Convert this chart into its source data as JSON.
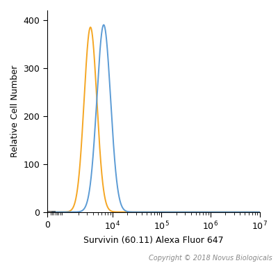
{
  "title": "",
  "xlabel": "Survivin (60.11) Alexa Fluor 647",
  "ylabel": "Relative Cell Number",
  "ylim": [
    0,
    420
  ],
  "yticks": [
    0,
    100,
    200,
    300,
    400
  ],
  "orange_peak_log": 3.55,
  "orange_peak_height": 385,
  "orange_sigma_log": 0.13,
  "blue_peak_log": 3.82,
  "blue_peak_height": 390,
  "blue_sigma_log": 0.14,
  "orange_color": "#F5A623",
  "blue_color": "#5B9BD5",
  "linewidth": 1.4,
  "copyright_text": "Copyright © 2018 Novus Biologicals",
  "copyright_fontsize": 7,
  "background_color": "#FFFFFF",
  "tick_label_fontsize": 9,
  "axis_label_fontsize": 9,
  "linthresh": 1000,
  "xlim_left": 0,
  "xlim_right": 10000000.0
}
